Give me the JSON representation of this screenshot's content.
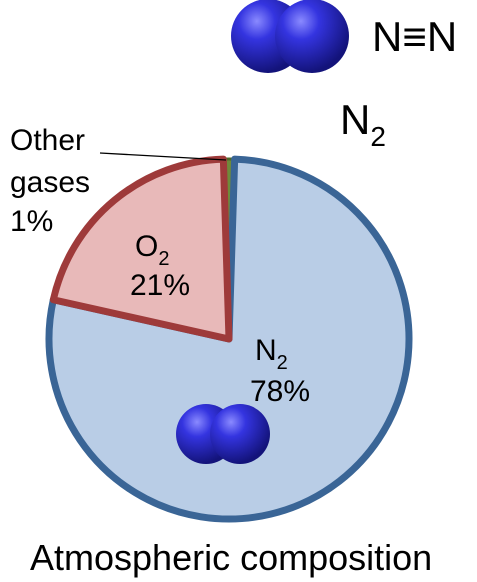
{
  "molecule": {
    "formula_bond": "N≡N",
    "formula_main": "N",
    "formula_sub": "2"
  },
  "chart_data": {
    "type": "pie",
    "title": "Atmospheric composition",
    "slices": [
      {
        "label_main": "N",
        "label_sub": "2",
        "value": 78,
        "percent_label": "78%",
        "fill": "#b9cde6",
        "stroke": "#3a6596"
      },
      {
        "label_main": "O",
        "label_sub": "2",
        "value": 21,
        "percent_label": "21%",
        "fill": "#e8b9b9",
        "stroke": "#9e3a3a"
      },
      {
        "label_lines": [
          "Other",
          "gases",
          "1%"
        ],
        "value": 1,
        "percent_label": "1%",
        "fill": "#6f8a3a",
        "stroke": "#4e6a2a"
      }
    ]
  },
  "colors": {
    "molecule_atom": "#2b2bd8",
    "molecule_atom_dark": "#1a1a90"
  }
}
